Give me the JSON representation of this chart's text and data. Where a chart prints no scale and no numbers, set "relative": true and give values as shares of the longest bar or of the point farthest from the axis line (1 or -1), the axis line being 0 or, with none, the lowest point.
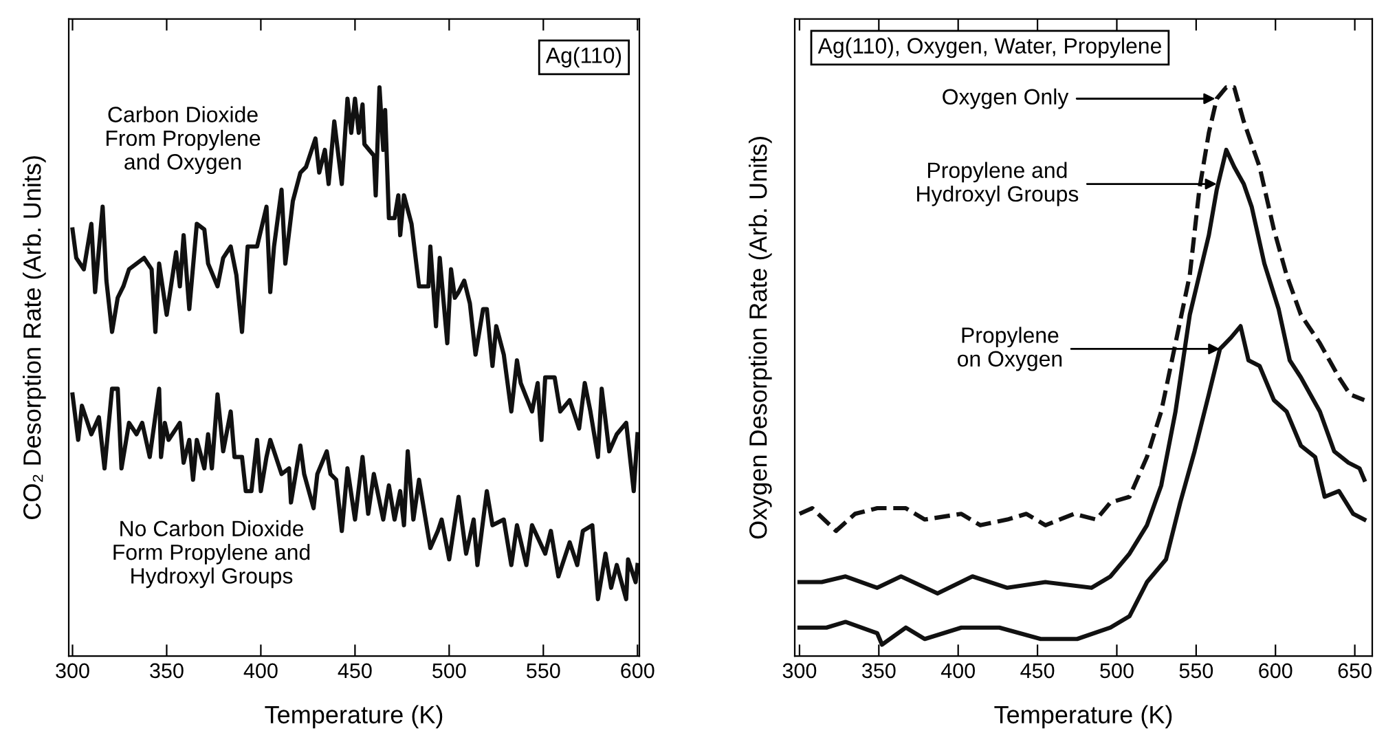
{
  "chart_data": [
    {
      "type": "line",
      "title": "Ag(110)",
      "xlabel": "Temperature (K)",
      "ylabel": "CO₂ Desorption Rate (Arb. Units)",
      "relative": true,
      "tick_labels": "x",
      "xlim": [
        298,
        601
      ],
      "xticks": [
        300,
        350,
        400,
        450,
        500,
        550,
        600
      ],
      "grid": false,
      "line_style": "solid",
      "marker": "none",
      "annotations": [
        "Carbon Dioxide\nFrom Propylene\nand Oxygen",
        "No Carbon Dioxide\nForm Propylene and\nHydroxyl Groups"
      ],
      "series": [
        {
          "color": "#111111",
          "x": [
            300,
            302,
            306,
            310,
            312,
            316,
            318,
            321,
            324,
            327,
            330,
            338,
            342,
            344,
            346,
            350,
            355,
            357,
            359,
            362,
            366,
            370,
            372,
            377,
            380,
            384,
            387,
            390,
            393,
            398,
            403,
            405,
            407,
            411,
            413,
            417,
            421,
            424,
            429,
            431,
            434,
            436,
            439,
            443,
            446,
            448,
            450,
            452,
            454,
            455,
            460,
            461,
            463,
            465,
            466,
            468,
            471,
            473,
            474,
            476,
            480,
            484,
            489,
            490,
            493,
            495,
            499,
            501,
            503,
            505,
            508,
            511,
            514,
            518,
            520,
            523,
            525,
            529,
            533,
            536,
            538,
            544,
            547,
            549,
            551,
            556,
            559,
            564,
            569,
            572,
            575,
            579,
            581,
            585,
            589,
            594,
            598,
            600
          ],
          "values": [
            0.75,
            0.7,
            0.68,
            0.76,
            0.64,
            0.79,
            0.66,
            0.57,
            0.63,
            0.65,
            0.68,
            0.7,
            0.68,
            0.57,
            0.69,
            0.6,
            0.71,
            0.65,
            0.74,
            0.61,
            0.76,
            0.75,
            0.69,
            0.65,
            0.7,
            0.72,
            0.67,
            0.57,
            0.72,
            0.72,
            0.79,
            0.64,
            0.72,
            0.82,
            0.69,
            0.8,
            0.85,
            0.86,
            0.91,
            0.85,
            0.89,
            0.83,
            0.94,
            0.83,
            0.98,
            0.92,
            0.98,
            0.92,
            0.97,
            0.9,
            0.88,
            0.81,
            1.0,
            0.89,
            0.96,
            0.77,
            0.77,
            0.81,
            0.74,
            0.81,
            0.76,
            0.65,
            0.65,
            0.72,
            0.58,
            0.7,
            0.55,
            0.68,
            0.63,
            0.64,
            0.66,
            0.62,
            0.53,
            0.61,
            0.61,
            0.51,
            0.58,
            0.53,
            0.43,
            0.52,
            0.48,
            0.43,
            0.48,
            0.38,
            0.49,
            0.49,
            0.43,
            0.45,
            0.4,
            0.48,
            0.43,
            0.35,
            0.47,
            0.36,
            0.39,
            0.41,
            0.29,
            0.39
          ]
        },
        {
          "color": "#111111",
          "x": [
            300,
            303,
            305,
            310,
            314,
            317,
            321,
            324,
            326,
            330,
            334,
            337,
            341,
            346,
            347,
            349,
            351,
            357,
            359,
            362,
            364,
            366,
            370,
            372,
            374,
            377,
            380,
            384,
            386,
            390,
            392,
            395,
            398,
            400,
            403,
            405,
            408,
            411,
            415,
            416,
            421,
            423,
            428,
            430,
            435,
            437,
            440,
            443,
            446,
            450,
            454,
            457,
            460,
            465,
            468,
            471,
            474,
            476,
            478,
            481,
            484,
            490,
            494,
            496,
            500,
            505,
            509,
            513,
            515,
            520,
            523,
            529,
            533,
            536,
            541,
            544,
            551,
            554,
            558,
            564,
            568,
            571,
            576,
            579,
            583,
            586,
            589,
            594,
            595,
            599,
            600
          ],
          "values": [
            0.46,
            0.38,
            0.44,
            0.39,
            0.42,
            0.33,
            0.47,
            0.47,
            0.33,
            0.41,
            0.39,
            0.41,
            0.35,
            0.47,
            0.35,
            0.41,
            0.38,
            0.41,
            0.34,
            0.38,
            0.31,
            0.38,
            0.33,
            0.39,
            0.33,
            0.46,
            0.36,
            0.43,
            0.35,
            0.35,
            0.29,
            0.29,
            0.38,
            0.29,
            0.35,
            0.38,
            0.35,
            0.32,
            0.33,
            0.27,
            0.37,
            0.32,
            0.26,
            0.32,
            0.36,
            0.32,
            0.31,
            0.22,
            0.33,
            0.24,
            0.35,
            0.25,
            0.32,
            0.24,
            0.3,
            0.24,
            0.29,
            0.23,
            0.36,
            0.24,
            0.31,
            0.19,
            0.22,
            0.24,
            0.17,
            0.28,
            0.18,
            0.24,
            0.16,
            0.29,
            0.23,
            0.24,
            0.16,
            0.23,
            0.16,
            0.23,
            0.18,
            0.22,
            0.14,
            0.2,
            0.16,
            0.22,
            0.23,
            0.1,
            0.18,
            0.12,
            0.16,
            0.1,
            0.17,
            0.13,
            0.16
          ]
        }
      ]
    },
    {
      "type": "line",
      "title": "Ag(110), Oxygen, Water, Propylene",
      "xlabel": "Temperature (K)",
      "ylabel": "Oxygen Desorption Rate (Arb. Units)",
      "relative": true,
      "tick_labels": "x",
      "xlim": [
        297,
        661
      ],
      "xticks": [
        300,
        350,
        400,
        450,
        500,
        550,
        600,
        650
      ],
      "grid": false,
      "line_style": "solid",
      "marker": "none",
      "annotations": [
        {
          "text": "Oxygen Only",
          "x": 562,
          "y": 0.98
        },
        {
          "text": "Propylene and\nHydroxyl Groups",
          "x": 563,
          "y": 0.83
        },
        {
          "text": "Propylene\non Oxygen",
          "x": 565,
          "y": 0.54
        }
      ],
      "series": [
        {
          "color": "#111111",
          "line_style": "dashed",
          "x": [
            300,
            308,
            323,
            335,
            349,
            367,
            379,
            402,
            414,
            431,
            443,
            455,
            473,
            487,
            496,
            508,
            519,
            528,
            537,
            546,
            552,
            558,
            563,
            569,
            574,
            580,
            585,
            590,
            599,
            607,
            616,
            628,
            640,
            647,
            656
          ],
          "values": [
            0.25,
            0.26,
            0.22,
            0.25,
            0.26,
            0.26,
            0.24,
            0.25,
            0.23,
            0.24,
            0.25,
            0.23,
            0.25,
            0.24,
            0.27,
            0.28,
            0.35,
            0.43,
            0.55,
            0.67,
            0.82,
            0.92,
            0.98,
            1.0,
            1.0,
            0.94,
            0.9,
            0.86,
            0.75,
            0.67,
            0.6,
            0.55,
            0.49,
            0.46,
            0.45
          ]
        },
        {
          "color": "#111111",
          "x": [
            300,
            314,
            329,
            349,
            364,
            387,
            409,
            431,
            455,
            484,
            496,
            508,
            519,
            528,
            537,
            546,
            552,
            558,
            563,
            569,
            574,
            580,
            585,
            593,
            602,
            609,
            616,
            628,
            637,
            646,
            653,
            656
          ],
          "values": [
            0.13,
            0.13,
            0.14,
            0.12,
            0.14,
            0.11,
            0.14,
            0.12,
            0.13,
            0.12,
            0.14,
            0.18,
            0.23,
            0.3,
            0.43,
            0.6,
            0.67,
            0.74,
            0.82,
            0.89,
            0.86,
            0.83,
            0.79,
            0.69,
            0.61,
            0.52,
            0.49,
            0.43,
            0.36,
            0.34,
            0.33,
            0.31
          ]
        },
        {
          "color": "#111111",
          "x": [
            300,
            317,
            329,
            349,
            352,
            367,
            379,
            402,
            426,
            452,
            475,
            496,
            508,
            519,
            531,
            540,
            549,
            558,
            565,
            572,
            578,
            583,
            590,
            599,
            607,
            616,
            625,
            631,
            640,
            649,
            656
          ],
          "values": [
            0.05,
            0.05,
            0.06,
            0.04,
            0.02,
            0.05,
            0.03,
            0.05,
            0.05,
            0.03,
            0.03,
            0.05,
            0.07,
            0.13,
            0.17,
            0.27,
            0.36,
            0.46,
            0.54,
            0.56,
            0.58,
            0.52,
            0.51,
            0.45,
            0.43,
            0.37,
            0.35,
            0.28,
            0.29,
            0.25,
            0.24
          ]
        }
      ]
    }
  ]
}
